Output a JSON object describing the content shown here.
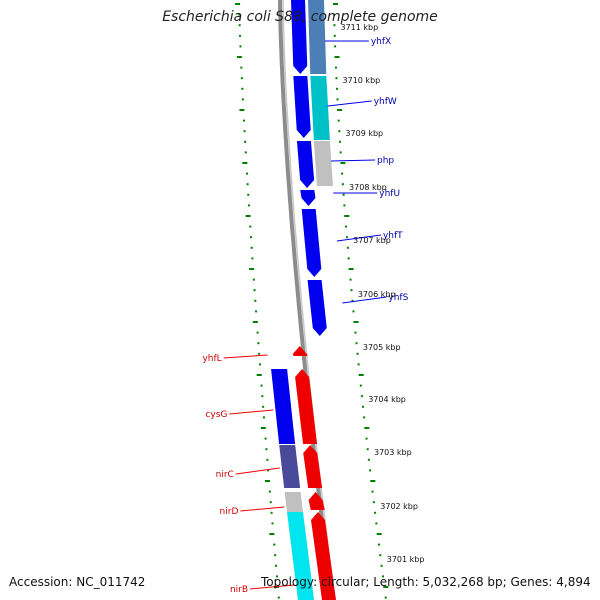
{
  "title": "Escherichia coli S88, complete genome",
  "accession": "Accession: NC_011742",
  "summary": "Topology: circular; Length: 5,032,268 bp; Genes: 4,894",
  "colors": {
    "backbone": "#8c8c8c",
    "forward_gene": "#0000ee",
    "reverse_gene": "#ee0000",
    "forward_label": "#0000aa",
    "reverse_label": "#cc0000",
    "tick_outer": "#008000",
    "tick_inner": "#008000",
    "cog_steel": "#4b7fb5",
    "cog_cyan": "#00c0c8",
    "cog_gray": "#c0c0c0",
    "cog_slate": "#4a4a9a",
    "cog_aqua": "#00e5ee"
  },
  "scale_labels": [
    "3711 kbp",
    "3710 kbp",
    "3709 kbp",
    "3708 kbp",
    "3707 kbp",
    "3706 kbp",
    "3705 kbp",
    "3704 kbp",
    "3703 kbp",
    "3702 kbp",
    "3701 kbp"
  ],
  "forward_genes": [
    "yhfX",
    "yhfW",
    "php",
    "yhfU",
    "yhfT",
    "yhfS"
  ],
  "reverse_genes": [
    "yhfL",
    "cysG",
    "nirC",
    "nirD",
    "nirB"
  ]
}
